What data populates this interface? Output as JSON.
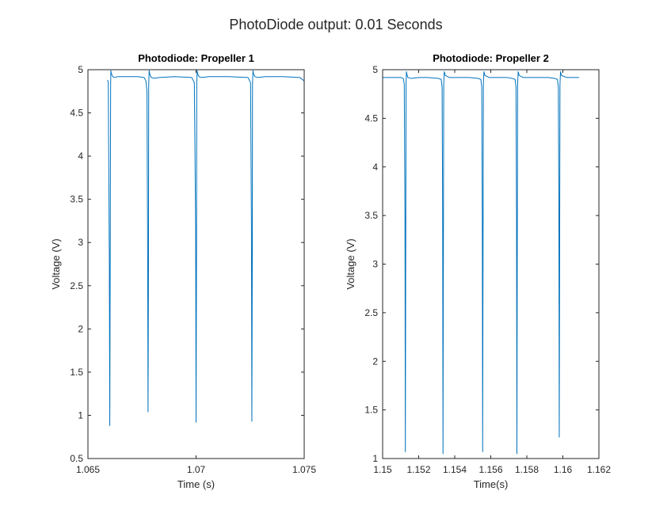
{
  "figure": {
    "suptitle": "PhotoDiode output: 0.01 Seconds"
  },
  "chart_data": [
    {
      "type": "line",
      "title": "Photodiode: Propeller 1",
      "xlabel": "Time (s)",
      "ylabel": "Voltage (V)",
      "xlim": [
        1.065,
        1.075
      ],
      "ylim": [
        0.5,
        5
      ],
      "x_ticks": [
        1.065,
        1.07,
        1.075
      ],
      "x_tick_labels": [
        "1.065",
        "1.07",
        "1.075"
      ],
      "y_ticks": [
        0.5,
        1,
        1.5,
        2,
        2.5,
        3,
        3.5,
        4,
        4.5,
        5
      ],
      "y_tick_labels": [
        "0.5",
        "1",
        "1.5",
        "2",
        "2.5",
        "3",
        "3.5",
        "4",
        "4.5",
        "5"
      ],
      "grid": false,
      "color": "#0072BD",
      "series": [
        {
          "x": [
            1.0659,
            1.06594,
            1.06599,
            1.06601,
            1.06603,
            1.06605,
            1.06606,
            1.06608,
            1.06612,
            1.0662,
            1.0664,
            1.0668,
            1.0673,
            1.0676,
            1.06768,
            1.06773,
            1.06776,
            1.06778,
            1.0678,
            1.06781,
            1.06783,
            1.06786,
            1.06792,
            1.06805,
            1.0683,
            1.069,
            1.0698,
            1.06992,
            1.06998,
            1.07,
            1.07002,
            1.07003,
            1.07005,
            1.07008,
            1.07013,
            1.07025,
            1.0706,
            1.0715,
            1.0724,
            1.07252,
            1.07256,
            1.07258,
            1.0726,
            1.07261,
            1.07263,
            1.07266,
            1.07272,
            1.07285,
            1.0732,
            1.074,
            1.0748,
            1.075
          ],
          "y": [
            4.88,
            4.86,
            2.8,
            0.88,
            2.8,
            4.82,
            4.99,
            4.96,
            4.93,
            4.91,
            4.92,
            4.92,
            4.92,
            4.91,
            4.87,
            4.75,
            3.0,
            1.04,
            2.8,
            4.82,
            4.99,
            4.95,
            4.91,
            4.9,
            4.91,
            4.92,
            4.91,
            4.85,
            3.2,
            0.92,
            2.8,
            4.82,
            4.99,
            4.95,
            4.92,
            4.91,
            4.92,
            4.92,
            4.91,
            4.85,
            3.2,
            0.93,
            2.8,
            4.82,
            4.99,
            4.95,
            4.92,
            4.91,
            4.92,
            4.92,
            4.91,
            4.87
          ]
        }
      ]
    },
    {
      "type": "line",
      "title": "Photodiode: Propeller 2",
      "xlabel": "Time(s)",
      "ylabel": "Voltage (V)",
      "xlim": [
        1.15,
        1.162
      ],
      "ylim": [
        1,
        5
      ],
      "x_ticks": [
        1.15,
        1.152,
        1.154,
        1.156,
        1.158,
        1.16,
        1.162
      ],
      "x_tick_labels": [
        "1.15",
        "1.152",
        "1.154",
        "1.156",
        "1.158",
        "1.16",
        "1.162"
      ],
      "y_ticks": [
        1,
        1.5,
        2,
        2.5,
        3,
        3.5,
        4,
        4.5,
        5
      ],
      "y_tick_labels": [
        "1",
        "1.5",
        "2",
        "2.5",
        "3",
        "3.5",
        "4",
        "4.5",
        "5"
      ],
      "grid": false,
      "color": "#0072BD",
      "series": [
        {
          "x": [
            1.15,
            1.1505,
            1.151,
            1.15115,
            1.1512,
            1.15124,
            1.15126,
            1.15128,
            1.1513,
            1.15132,
            1.15135,
            1.1514,
            1.1516,
            1.152,
            1.1525,
            1.1531,
            1.15325,
            1.1533,
            1.15333,
            1.15335,
            1.15337,
            1.15339,
            1.15342,
            1.15348,
            1.1537,
            1.1542,
            1.1548,
            1.1553,
            1.15545,
            1.1555,
            1.15553,
            1.15555,
            1.15557,
            1.15559,
            1.15562,
            1.15568,
            1.1559,
            1.1564,
            1.1569,
            1.1572,
            1.15735,
            1.1574,
            1.15743,
            1.15745,
            1.15747,
            1.15749,
            1.15752,
            1.15758,
            1.1578,
            1.1584,
            1.1592,
            1.15955,
            1.1597,
            1.15975,
            1.15978,
            1.1598,
            1.15982,
            1.15984,
            1.15987,
            1.15993,
            1.1602,
            1.1609
          ],
          "y": [
            4.92,
            4.92,
            4.92,
            4.91,
            4.85,
            3.5,
            1.07,
            3.0,
            4.85,
            4.98,
            4.95,
            4.92,
            4.91,
            4.92,
            4.92,
            4.91,
            4.9,
            4.82,
            3.5,
            1.05,
            3.0,
            4.85,
            4.98,
            4.94,
            4.92,
            4.92,
            4.92,
            4.91,
            4.9,
            4.82,
            3.5,
            1.07,
            3.0,
            4.85,
            4.98,
            4.94,
            4.92,
            4.92,
            4.92,
            4.91,
            4.9,
            4.82,
            3.5,
            1.05,
            3.0,
            4.85,
            4.98,
            4.94,
            4.92,
            4.92,
            4.92,
            4.91,
            4.9,
            4.82,
            3.5,
            1.22,
            3.0,
            4.85,
            4.98,
            4.94,
            4.92,
            4.92
          ]
        }
      ]
    }
  ]
}
